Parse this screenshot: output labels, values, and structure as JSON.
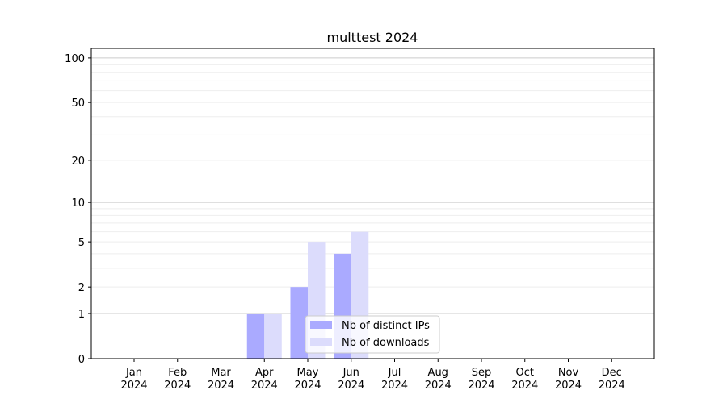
{
  "chart_data": {
    "type": "bar",
    "title": "multtest 2024",
    "xlabel": "",
    "ylabel": "",
    "yscale": "symlog (log of 1+value)",
    "ylim": [
      0,
      116
    ],
    "yticks": [
      0,
      1,
      2,
      5,
      10,
      20,
      50,
      100
    ],
    "grid": true,
    "legend_position": "bottom-center",
    "categories": [
      "Jan\n2024",
      "Feb\n2024",
      "Mar\n2024",
      "Apr\n2024",
      "May\n2024",
      "Jun\n2024",
      "Jul\n2024",
      "Aug\n2024",
      "Sep\n2024",
      "Oct\n2024",
      "Nov\n2024",
      "Dec\n2024"
    ],
    "series": [
      {
        "name": "Nb of distinct IPs",
        "color": "#aaaaff",
        "values": [
          0,
          0,
          0,
          1,
          2,
          4,
          0,
          0,
          0,
          0,
          0,
          0
        ]
      },
      {
        "name": "Nb of downloads",
        "color": "#dcdcfc",
        "values": [
          0,
          0,
          0,
          1,
          5,
          6,
          0,
          0,
          0,
          0,
          0,
          0
        ]
      }
    ]
  }
}
